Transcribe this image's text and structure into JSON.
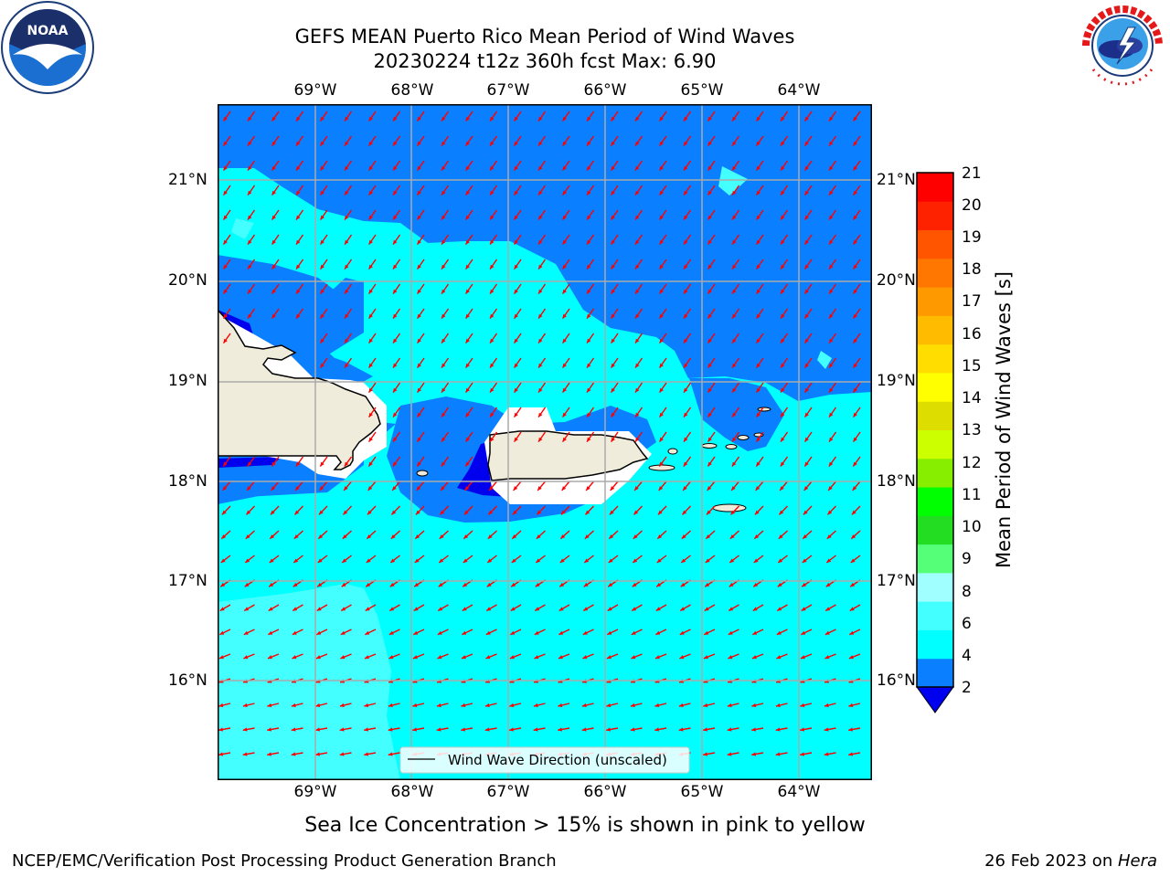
{
  "title": {
    "line1": "GEFS MEAN Puerto Rico Mean Period of Wind Waves",
    "line2": "20230224 t12z 360h fcst   Max: 6.90"
  },
  "logos": {
    "left": {
      "icon": "noaa-logo",
      "text": "NOAA"
    },
    "right": {
      "icon": "national-weather-service-logo"
    }
  },
  "axes": {
    "lon_labels": [
      "69°W",
      "68°W",
      "67°W",
      "66°W",
      "65°W",
      "64°W"
    ],
    "lat_labels": [
      "21°N",
      "20°N",
      "19°N",
      "18°N",
      "17°N",
      "16°N"
    ]
  },
  "legend": {
    "entry": "Wind Wave Direction (unscaled)"
  },
  "colorbar": {
    "label": "Mean Period of Wind Waves [s]",
    "ticks": [
      "2",
      "4",
      "6",
      "8",
      "9",
      "10",
      "11",
      "12",
      "13",
      "14",
      "15",
      "16",
      "17",
      "18",
      "19",
      "20",
      "21"
    ],
    "colors": [
      "#0a7fff",
      "#00ffff",
      "#44ffff",
      "#a0ffff",
      "#55ff77",
      "#22dd22",
      "#00ff00",
      "#88ee00",
      "#ccff00",
      "#dddd00",
      "#ffff00",
      "#ffdd00",
      "#ffbb00",
      "#ff9900",
      "#ff7700",
      "#ff5500",
      "#ff2200",
      "#ff0000"
    ],
    "under_color": "#0000ee"
  },
  "colors": {
    "arrow": "#ff0000",
    "land": "#efecdc",
    "grid": "#aaaaaa"
  },
  "note": "Sea Ice Concentration > 15% is shown in pink to yellow",
  "footer": {
    "left": "NCEP/EMC/Verification Post Processing Product Generation Branch",
    "right_prefix": "26 Feb 2023 on ",
    "right_host": "Hera"
  }
}
